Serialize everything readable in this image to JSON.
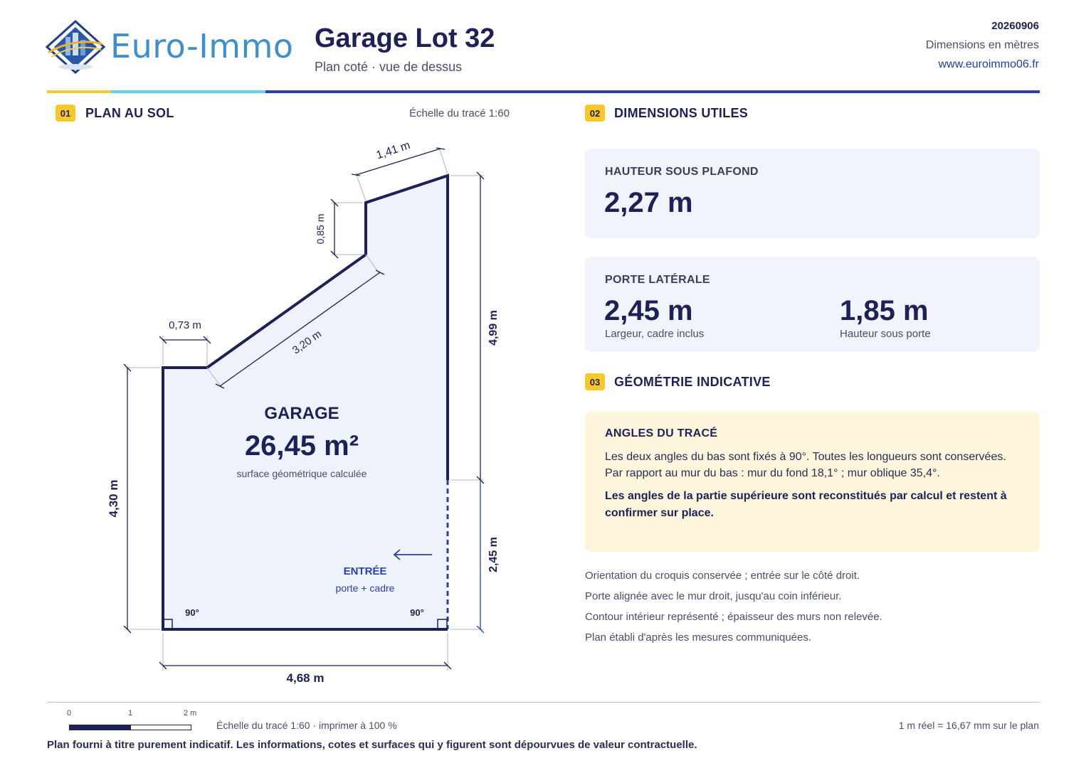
{
  "header": {
    "brand": "Euro-Immo",
    "title": "Garage Lot 32",
    "subtitle": "Plan coté · vue de dessus",
    "reference": "20260906",
    "units": "Dimensions en mètres",
    "website": "www.euroimmo06.fr"
  },
  "plan_section": {
    "number": "01",
    "title": "PLAN AU SOL",
    "scale": "Échelle du tracé 1:60",
    "room_name": "GARAGE",
    "area": "26,45 m²",
    "area_caption": "surface géométrique calculée",
    "entry_label": "ENTRÉE",
    "entry_caption": "porte + cadre",
    "angle_left": "90°",
    "angle_right": "90°",
    "dimensions": {
      "bottom": "4,68 m",
      "left": "4,30 m",
      "top_ledge": "0,73 m",
      "oblique": "3,20 m",
      "step": "0,85 m",
      "back": "1,41 m",
      "right_wall": "4,99 m",
      "door": "2,45 m"
    }
  },
  "dimensions_section": {
    "number": "02",
    "title": "DIMENSIONS UTILES",
    "ceiling": {
      "label": "HAUTEUR SOUS PLAFOND",
      "value": "2,27 m"
    },
    "side_door": {
      "label": "PORTE LATÉRALE",
      "width_value": "2,45 m",
      "width_caption": "Largeur, cadre inclus",
      "height_value": "1,85 m",
      "height_caption": "Hauteur sous porte"
    }
  },
  "geometry_section": {
    "number": "03",
    "title": "GÉOMÉTRIE INDICATIVE",
    "note_title": "ANGLES DU TRACÉ",
    "note_line1": "Les deux angles du bas sont fixés à 90°. Toutes les longueurs sont conservées.",
    "note_line2": "Par rapport au mur du bas : mur du fond 18,1° ; mur oblique 35,4°.",
    "note_bold": "Les angles de la partie supérieure sont reconstitués par calcul et restent à confirmer sur place."
  },
  "info_lines": [
    "Orientation du croquis conservée ; entrée sur le côté droit.",
    "Porte alignée avec le mur droit, jusqu'au coin inférieur.",
    "Contour intérieur représenté ; épaisseur des murs non relevée.",
    "Plan établi d'après les mesures communiquées."
  ],
  "footer": {
    "bar_labels": [
      "0",
      "1",
      "2 m"
    ],
    "scale_text": "Échelle du tracé 1:60 · imprimer à 100 %",
    "conversion": "1 m réel = 16,67 mm sur le plan",
    "disclaimer": "Plan fourni à titre purement indicatif. Les informations, cotes et surfaces qui y figurent sont dépourvues de valeur contractuelle."
  },
  "colors": {
    "navy": "#1e2157",
    "accent_blue": "#2a3fb0",
    "yellow": "#f7c928",
    "cyan": "#5ad8e8",
    "card_bg": "#f1f4fb",
    "note_bg": "#fdf6dc",
    "plan_fill": "#eef2fb"
  }
}
